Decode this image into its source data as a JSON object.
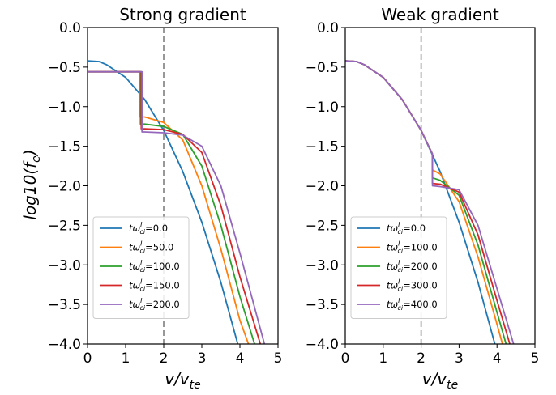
{
  "chart_data": [
    {
      "type": "line",
      "title": "Strong gradient",
      "xlabel": "v/v_te",
      "ylabel": "log10(f_e)",
      "xlim": [
        0,
        5
      ],
      "ylim": [
        -4.0,
        0.0
      ],
      "xticks": [
        "0",
        "1",
        "2",
        "3",
        "4",
        "5"
      ],
      "yticks": [
        "0.0",
        "−0.5",
        "−1.0",
        "−1.5",
        "−2.0",
        "−2.5",
        "−3.0",
        "−3.5",
        "−4.0"
      ],
      "vline_x": 2,
      "legend_position": "lower-left",
      "legend_prefix": "tω",
      "legend_sup": "I",
      "legend_sub": "ci",
      "series": [
        {
          "name": "=0.0",
          "color": "#1f77b4",
          "x": [
            0,
            0.3,
            0.5,
            1.0,
            1.5,
            2.0,
            2.5,
            3.0,
            3.5,
            4.0
          ],
          "y": [
            -0.42,
            -0.43,
            -0.47,
            -0.63,
            -0.91,
            -1.3,
            -1.82,
            -2.46,
            -3.22,
            -4.1
          ]
        },
        {
          "name": "=50.0",
          "color": "#ff7f0e",
          "x": [
            0,
            1.37,
            1.37,
            1.5,
            2.0,
            2.5,
            3.0,
            3.5,
            4.0,
            4.3
          ],
          "y": [
            -0.56,
            -0.56,
            -1.13,
            -1.13,
            -1.2,
            -1.42,
            -2.0,
            -2.8,
            -3.7,
            -4.1
          ]
        },
        {
          "name": "=100.0",
          "color": "#2ca02c",
          "x": [
            0,
            1.39,
            1.39,
            1.5,
            2.0,
            2.5,
            3.0,
            3.5,
            4.0,
            4.45
          ],
          "y": [
            -0.56,
            -0.56,
            -1.22,
            -1.22,
            -1.25,
            -1.35,
            -1.75,
            -2.5,
            -3.4,
            -4.1
          ]
        },
        {
          "name": "=150.0",
          "color": "#d62728",
          "x": [
            0,
            1.41,
            1.41,
            1.5,
            2.0,
            2.5,
            3.0,
            3.5,
            4.0,
            4.6
          ],
          "y": [
            -0.56,
            -0.56,
            -1.28,
            -1.28,
            -1.29,
            -1.35,
            -1.58,
            -2.25,
            -3.15,
            -4.1
          ]
        },
        {
          "name": "=200.0",
          "color": "#9467bd",
          "x": [
            0,
            1.43,
            1.43,
            1.5,
            2.0,
            2.5,
            3.0,
            3.5,
            4.0,
            4.7
          ],
          "y": [
            -0.56,
            -0.56,
            -1.32,
            -1.32,
            -1.33,
            -1.36,
            -1.5,
            -2.0,
            -2.85,
            -4.1
          ]
        }
      ]
    },
    {
      "type": "line",
      "title": "Weak gradient",
      "xlabel": "v/v_te",
      "xlim": [
        0,
        5
      ],
      "ylim": [
        -4.0,
        0.0
      ],
      "xticks": [
        "0",
        "1",
        "2",
        "3",
        "4",
        "5"
      ],
      "yticks": [
        "0.0",
        "−0.5",
        "−1.0",
        "−1.5",
        "−2.0",
        "−2.5",
        "−3.0",
        "−3.5",
        "−4.0"
      ],
      "vline_x": 2,
      "legend_position": "lower-left",
      "legend_prefix": "tω",
      "legend_sup": "I",
      "legend_sub": "ci",
      "series": [
        {
          "name": "=0.0",
          "color": "#1f77b4",
          "x": [
            0,
            0.3,
            0.5,
            1.0,
            1.5,
            2.0,
            2.5,
            3.0,
            3.5,
            4.0
          ],
          "y": [
            -0.42,
            -0.43,
            -0.47,
            -0.63,
            -0.91,
            -1.3,
            -1.82,
            -2.46,
            -3.22,
            -4.1
          ]
        },
        {
          "name": "=100.0",
          "color": "#ff7f0e",
          "x": [
            0,
            0.3,
            0.5,
            1.0,
            1.5,
            2.0,
            2.3,
            2.3,
            2.5,
            3.0,
            3.5,
            4.0,
            4.2
          ],
          "y": [
            -0.42,
            -0.43,
            -0.47,
            -0.63,
            -0.91,
            -1.3,
            -1.6,
            -1.8,
            -1.85,
            -2.2,
            -2.9,
            -3.75,
            -4.1
          ]
        },
        {
          "name": "=200.0",
          "color": "#2ca02c",
          "x": [
            0,
            0.3,
            0.5,
            1.0,
            1.5,
            2.0,
            2.3,
            2.3,
            2.5,
            3.0,
            3.5,
            4.0,
            4.3
          ],
          "y": [
            -0.42,
            -0.43,
            -0.47,
            -0.63,
            -0.91,
            -1.3,
            -1.6,
            -1.9,
            -1.93,
            -2.12,
            -2.75,
            -3.6,
            -4.1
          ]
        },
        {
          "name": "=300.0",
          "color": "#d62728",
          "x": [
            0,
            0.3,
            0.5,
            1.0,
            1.5,
            2.0,
            2.3,
            2.3,
            2.5,
            3.0,
            3.5,
            4.0,
            4.4
          ],
          "y": [
            -0.42,
            -0.43,
            -0.47,
            -0.63,
            -0.91,
            -1.3,
            -1.6,
            -1.97,
            -1.98,
            -2.08,
            -2.62,
            -3.45,
            -4.1
          ]
        },
        {
          "name": "=400.0",
          "color": "#9467bd",
          "x": [
            0,
            0.3,
            0.5,
            1.0,
            1.5,
            2.0,
            2.3,
            2.3,
            2.5,
            3.0,
            3.5,
            4.0,
            4.5
          ],
          "y": [
            -0.42,
            -0.43,
            -0.47,
            -0.63,
            -0.91,
            -1.3,
            -1.6,
            -2.0,
            -2.01,
            -2.05,
            -2.5,
            -3.3,
            -4.1
          ]
        }
      ]
    }
  ]
}
